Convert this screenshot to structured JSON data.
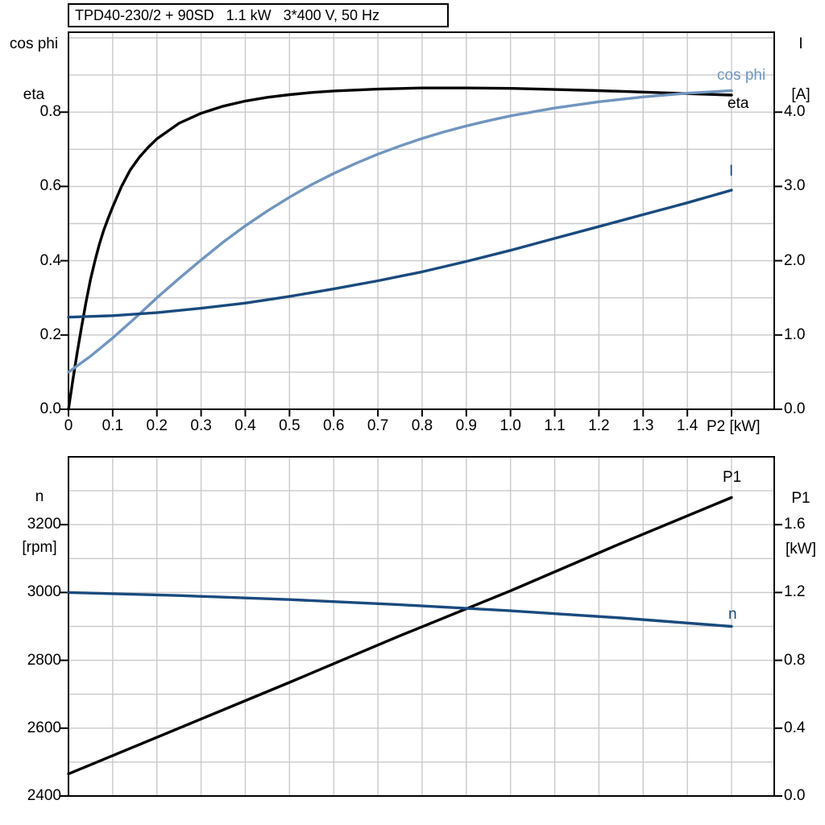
{
  "title": "TPD40-230/2 + 90SD   1.1 kW   3*400 V, 50 Hz",
  "colors": {
    "black": "#000000",
    "light_blue": "#7195BE",
    "dark_blue": "#1A4A7E",
    "grid": "#C8C9CC",
    "frame": "#000000"
  },
  "chart_data": [
    {
      "type": "line",
      "name": "motor-performance-top",
      "x_axis": {
        "label": "P2 [kW]",
        "min": 0,
        "max": 1.6,
        "grid_step": 0.1,
        "ticks": [
          {
            "v": 0.0,
            "l": "0"
          },
          {
            "v": 0.1,
            "l": "0.1"
          },
          {
            "v": 0.2,
            "l": "0.2"
          },
          {
            "v": 0.3,
            "l": "0.3"
          },
          {
            "v": 0.4,
            "l": "0.4"
          },
          {
            "v": 0.5,
            "l": "0.5"
          },
          {
            "v": 0.6,
            "l": "0.6"
          },
          {
            "v": 0.7,
            "l": "0.7"
          },
          {
            "v": 0.8,
            "l": "0.8"
          },
          {
            "v": 0.9,
            "l": "0.9"
          },
          {
            "v": 1.0,
            "l": "1.0"
          },
          {
            "v": 1.1,
            "l": "1.1"
          },
          {
            "v": 1.2,
            "l": "1.2"
          },
          {
            "v": 1.3,
            "l": "1.3"
          },
          {
            "v": 1.4,
            "l": "1.4"
          },
          {
            "v": 1.5,
            "l": ""
          }
        ]
      },
      "y_left": {
        "header_line1": "cos phi",
        "header_line2": "eta",
        "min": 0,
        "max": 1.0,
        "grid_step": 0.1,
        "ticks": [
          {
            "v": 0.0,
            "l": "0.0"
          },
          {
            "v": 0.2,
            "l": "0.2"
          },
          {
            "v": 0.4,
            "l": "0.4"
          },
          {
            "v": 0.6,
            "l": "0.6"
          },
          {
            "v": 0.8,
            "l": "0.8"
          }
        ]
      },
      "y_right": {
        "header_line1": "I",
        "header_line2": "[A]",
        "min": 0,
        "max": 5.0,
        "grid_step": 0.5,
        "ticks": [
          {
            "v": 0.0,
            "l": "0.0"
          },
          {
            "v": 1.0,
            "l": "1.0"
          },
          {
            "v": 2.0,
            "l": "2.0"
          },
          {
            "v": 3.0,
            "l": "3.0"
          },
          {
            "v": 4.0,
            "l": "4.0"
          }
        ]
      },
      "series": [
        {
          "name": "eta",
          "label": "eta",
          "axis": "left",
          "color": "black",
          "points": [
            [
              0,
              0
            ],
            [
              0.01,
              0.08
            ],
            [
              0.02,
              0.155
            ],
            [
              0.03,
              0.225
            ],
            [
              0.04,
              0.29
            ],
            [
              0.05,
              0.35
            ],
            [
              0.06,
              0.4
            ],
            [
              0.07,
              0.445
            ],
            [
              0.08,
              0.483
            ],
            [
              0.09,
              0.515
            ],
            [
              0.1,
              0.545
            ],
            [
              0.12,
              0.6
            ],
            [
              0.14,
              0.645
            ],
            [
              0.16,
              0.678
            ],
            [
              0.18,
              0.705
            ],
            [
              0.2,
              0.728
            ],
            [
              0.25,
              0.77
            ],
            [
              0.3,
              0.797
            ],
            [
              0.35,
              0.816
            ],
            [
              0.4,
              0.83
            ],
            [
              0.45,
              0.84
            ],
            [
              0.5,
              0.847
            ],
            [
              0.55,
              0.853
            ],
            [
              0.6,
              0.857
            ],
            [
              0.7,
              0.862
            ],
            [
              0.8,
              0.865
            ],
            [
              0.9,
              0.865
            ],
            [
              1.0,
              0.864
            ],
            [
              1.1,
              0.861
            ],
            [
              1.2,
              0.858
            ],
            [
              1.3,
              0.854
            ],
            [
              1.4,
              0.85
            ],
            [
              1.5,
              0.846
            ]
          ]
        },
        {
          "name": "cos phi",
          "label": "cos phi",
          "axis": "left",
          "color": "light_blue",
          "points": [
            [
              0,
              0.1
            ],
            [
              0.05,
              0.143
            ],
            [
              0.1,
              0.192
            ],
            [
              0.15,
              0.245
            ],
            [
              0.2,
              0.3
            ],
            [
              0.25,
              0.352
            ],
            [
              0.3,
              0.402
            ],
            [
              0.35,
              0.45
            ],
            [
              0.4,
              0.494
            ],
            [
              0.45,
              0.534
            ],
            [
              0.5,
              0.571
            ],
            [
              0.55,
              0.605
            ],
            [
              0.6,
              0.635
            ],
            [
              0.65,
              0.662
            ],
            [
              0.7,
              0.687
            ],
            [
              0.75,
              0.709
            ],
            [
              0.8,
              0.729
            ],
            [
              0.85,
              0.747
            ],
            [
              0.9,
              0.763
            ],
            [
              0.95,
              0.777
            ],
            [
              1.0,
              0.79
            ],
            [
              1.1,
              0.811
            ],
            [
              1.2,
              0.828
            ],
            [
              1.3,
              0.841
            ],
            [
              1.4,
              0.851
            ],
            [
              1.5,
              0.858
            ]
          ]
        },
        {
          "name": "I",
          "label": "I",
          "axis": "right",
          "color": "dark_blue",
          "points": [
            [
              0,
              1.24
            ],
            [
              0.1,
              1.26
            ],
            [
              0.2,
              1.3
            ],
            [
              0.3,
              1.36
            ],
            [
              0.4,
              1.43
            ],
            [
              0.5,
              1.52
            ],
            [
              0.6,
              1.62
            ],
            [
              0.7,
              1.73
            ],
            [
              0.8,
              1.85
            ],
            [
              0.9,
              1.99
            ],
            [
              1.0,
              2.14
            ],
            [
              1.1,
              2.3
            ],
            [
              1.2,
              2.46
            ],
            [
              1.3,
              2.62
            ],
            [
              1.4,
              2.78
            ],
            [
              1.5,
              2.95
            ]
          ]
        }
      ]
    },
    {
      "type": "line",
      "name": "speed-power-bottom",
      "x_axis": {
        "label": "",
        "min": 0,
        "max": 1.6,
        "grid_step": 0.1,
        "ticks": []
      },
      "y_left": {
        "header_line1": "n",
        "header_line2": "[rpm]",
        "min": 2400,
        "max": 3400,
        "grid_step": 100,
        "ticks": [
          {
            "v": 2400,
            "l": "2400"
          },
          {
            "v": 2600,
            "l": "2600"
          },
          {
            "v": 2800,
            "l": "2800"
          },
          {
            "v": 3000,
            "l": "3000"
          },
          {
            "v": 3200,
            "l": "3200"
          }
        ]
      },
      "y_right": {
        "header_line1": "P1",
        "header_line2": "[kW]",
        "min": 0,
        "max": 2.0,
        "grid_step": 0.2,
        "ticks": [
          {
            "v": 0.0,
            "l": "0.0"
          },
          {
            "v": 0.4,
            "l": "0.4"
          },
          {
            "v": 0.8,
            "l": "0.8"
          },
          {
            "v": 1.2,
            "l": "1.2"
          },
          {
            "v": 1.6,
            "l": "1.6"
          }
        ]
      },
      "series": [
        {
          "name": "P1",
          "label": "P1",
          "axis": "right",
          "color": "black",
          "points": [
            [
              0,
              0.13
            ],
            [
              0.25,
              0.4
            ],
            [
              0.5,
              0.67
            ],
            [
              0.75,
              0.945
            ],
            [
              1.0,
              1.21
            ],
            [
              1.25,
              1.49
            ],
            [
              1.5,
              1.76
            ]
          ]
        },
        {
          "name": "n",
          "label": "n",
          "axis": "left",
          "color": "dark_blue",
          "points": [
            [
              0,
              3000
            ],
            [
              0.25,
              2991
            ],
            [
              0.5,
              2979
            ],
            [
              0.75,
              2964
            ],
            [
              1.0,
              2946
            ],
            [
              1.25,
              2925
            ],
            [
              1.5,
              2900
            ]
          ]
        }
      ]
    }
  ]
}
